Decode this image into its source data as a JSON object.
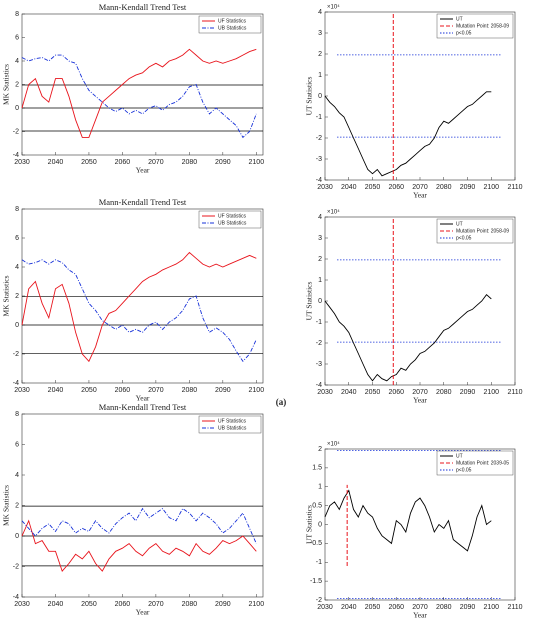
{
  "caption": "(a)",
  "chart_data": [
    {
      "type": "line",
      "title": "Mann-Kendall Trend Test",
      "xlabel": "Year",
      "ylabel": "MK Statistics",
      "x": [
        2030,
        2032,
        2034,
        2036,
        2038,
        2040,
        2042,
        2044,
        2046,
        2048,
        2050,
        2052,
        2054,
        2056,
        2058,
        2060,
        2062,
        2064,
        2066,
        2068,
        2070,
        2072,
        2074,
        2076,
        2078,
        2080,
        2082,
        2084,
        2086,
        2088,
        2090,
        2092,
        2094,
        2096,
        2098,
        2100
      ],
      "series": [
        {
          "name": "UF Statistics",
          "color": "#e8141c",
          "dash": "solid",
          "values": [
            0,
            2,
            2.5,
            1,
            0.5,
            2.5,
            2.5,
            1,
            -1,
            -2.5,
            -2.5,
            -1,
            0.5,
            1,
            1.5,
            2,
            2.5,
            2.8,
            3,
            3.5,
            3.8,
            3.5,
            4,
            4.2,
            4.5,
            5,
            4.5,
            4,
            3.8,
            4,
            3.8,
            4,
            4.2,
            4.5,
            4.8,
            5
          ]
        },
        {
          "name": "UB Statistics",
          "color": "#1630d8",
          "dash": "dashdot",
          "values": [
            4.3,
            4,
            4.2,
            4.3,
            4,
            4.5,
            4.5,
            4,
            3.8,
            2.5,
            1.5,
            1,
            0.5,
            0,
            -0.3,
            0,
            -0.5,
            -0.2,
            -0.5,
            0,
            0.2,
            -0.2,
            0.3,
            0.5,
            1,
            1.8,
            2,
            0.5,
            -0.5,
            0,
            -0.5,
            -1,
            -1.5,
            -2.5,
            -2,
            -0.5
          ]
        }
      ],
      "hlines": [
        1.96,
        0,
        -1.96
      ],
      "xlim": [
        2030,
        2102
      ],
      "xticks": [
        2030,
        2040,
        2050,
        2060,
        2070,
        2080,
        2090,
        2100
      ],
      "ylim": [
        -4,
        8
      ],
      "yticks": [
        -4,
        -2,
        0,
        2,
        4,
        6,
        8
      ]
    },
    {
      "type": "line",
      "xlabel": "Year",
      "ylabel": "UT Statistics",
      "y_exponent": "×10⁴",
      "x": [
        2030,
        2032,
        2034,
        2036,
        2038,
        2040,
        2042,
        2044,
        2046,
        2048,
        2050,
        2052,
        2054,
        2056,
        2058,
        2060,
        2062,
        2064,
        2066,
        2068,
        2070,
        2072,
        2074,
        2076,
        2078,
        2080,
        2082,
        2084,
        2086,
        2088,
        2090,
        2092,
        2094,
        2096,
        2098,
        2100
      ],
      "series": [
        {
          "name": "UT",
          "color": "#000000",
          "dash": "solid",
          "values": [
            0,
            -0.3,
            -0.5,
            -0.8,
            -1,
            -1.5,
            -2,
            -2.5,
            -3,
            -3.5,
            -3.7,
            -3.5,
            -3.8,
            -3.7,
            -3.6,
            -3.5,
            -3.3,
            -3.2,
            -3,
            -2.8,
            -2.6,
            -2.4,
            -2.3,
            -2,
            -1.5,
            -1.2,
            -1.3,
            -1.1,
            -0.9,
            -0.7,
            -0.5,
            -0.4,
            -0.2,
            0,
            0.2,
            0.2
          ]
        }
      ],
      "mutation": {
        "name": "Mutation Point: 2058-09",
        "color": "#e8141c",
        "x": 2058.75,
        "y": [
          -4,
          4
        ]
      },
      "threshold": {
        "name": "p<0.05",
        "color": "#1630d8",
        "values": [
          1.96,
          -1.96
        ]
      },
      "xlim": [
        2030,
        2110
      ],
      "xticks": [
        2030,
        2040,
        2050,
        2060,
        2070,
        2080,
        2090,
        2100,
        2110
      ],
      "ylim": [
        -4,
        4
      ],
      "yticks": [
        -4,
        -3,
        -2,
        -1,
        0,
        1,
        2,
        3,
        4
      ]
    },
    {
      "type": "line",
      "title": "Mann-Kendall Trend Test",
      "xlabel": "Year",
      "ylabel": "MK Statistics",
      "x": [
        2030,
        2032,
        2034,
        2036,
        2038,
        2040,
        2042,
        2044,
        2046,
        2048,
        2050,
        2052,
        2054,
        2056,
        2058,
        2060,
        2062,
        2064,
        2066,
        2068,
        2070,
        2072,
        2074,
        2076,
        2078,
        2080,
        2082,
        2084,
        2086,
        2088,
        2090,
        2092,
        2094,
        2096,
        2098,
        2100
      ],
      "series": [
        {
          "name": "UF Statistics",
          "color": "#e8141c",
          "dash": "solid",
          "values": [
            0,
            2.5,
            3,
            1.5,
            0.5,
            2.5,
            2.8,
            1.5,
            -0.5,
            -2,
            -2.5,
            -1.5,
            0,
            0.8,
            1,
            1.5,
            2,
            2.5,
            3,
            3.3,
            3.5,
            3.8,
            4,
            4.2,
            4.5,
            5,
            4.6,
            4.2,
            4,
            4.2,
            4,
            4.2,
            4.4,
            4.6,
            4.8,
            4.6
          ]
        },
        {
          "name": "UB Statistics",
          "color": "#1630d8",
          "dash": "dashdot",
          "values": [
            4.5,
            4.2,
            4.3,
            4.5,
            4.2,
            4.5,
            4.3,
            3.8,
            3.5,
            2.5,
            1.5,
            1,
            0.3,
            0,
            -0.3,
            0,
            -0.5,
            -0.3,
            -0.5,
            0,
            0.2,
            -0.3,
            0.2,
            0.5,
            1,
            1.8,
            2,
            0.5,
            -0.5,
            -0.2,
            -0.5,
            -1,
            -1.8,
            -2.5,
            -2,
            -1
          ]
        }
      ],
      "hlines": [
        1.96,
        0,
        -1.96
      ],
      "xlim": [
        2030,
        2102
      ],
      "xticks": [
        2030,
        2040,
        2050,
        2060,
        2070,
        2080,
        2090,
        2100
      ],
      "ylim": [
        -4,
        8
      ],
      "yticks": [
        -4,
        -2,
        0,
        2,
        4,
        6,
        8
      ]
    },
    {
      "type": "line",
      "xlabel": "Year",
      "ylabel": "UT Statistics",
      "y_exponent": "×10⁴",
      "x": [
        2030,
        2032,
        2034,
        2036,
        2038,
        2040,
        2042,
        2044,
        2046,
        2048,
        2050,
        2052,
        2054,
        2056,
        2058,
        2060,
        2062,
        2064,
        2066,
        2068,
        2070,
        2072,
        2074,
        2076,
        2078,
        2080,
        2082,
        2084,
        2086,
        2088,
        2090,
        2092,
        2094,
        2096,
        2098,
        2100
      ],
      "series": [
        {
          "name": "UT",
          "color": "#000000",
          "dash": "solid",
          "values": [
            0,
            -0.3,
            -0.6,
            -1,
            -1.2,
            -1.5,
            -2,
            -2.5,
            -3,
            -3.5,
            -3.8,
            -3.5,
            -3.7,
            -3.8,
            -3.6,
            -3.5,
            -3.2,
            -3.3,
            -3,
            -2.8,
            -2.5,
            -2.4,
            -2.2,
            -2,
            -1.7,
            -1.4,
            -1.3,
            -1.1,
            -0.9,
            -0.7,
            -0.5,
            -0.4,
            -0.2,
            0,
            0.3,
            0.1
          ]
        }
      ],
      "mutation": {
        "name": "Mutation Point: 2058-09",
        "color": "#e8141c",
        "x": 2058.75,
        "y": [
          -4,
          4
        ]
      },
      "threshold": {
        "name": "p<0.05",
        "color": "#1630d8",
        "values": [
          1.96,
          -1.96
        ]
      },
      "xlim": [
        2030,
        2110
      ],
      "xticks": [
        2030,
        2040,
        2050,
        2060,
        2070,
        2080,
        2090,
        2100,
        2110
      ],
      "ylim": [
        -4,
        4
      ],
      "yticks": [
        -4,
        -3,
        -2,
        -1,
        0,
        1,
        2,
        3,
        4
      ]
    },
    {
      "type": "line",
      "title": "Mann-Kendall Trend Test",
      "xlabel": "Year",
      "ylabel": "MK Statistics",
      "x": [
        2030,
        2032,
        2034,
        2036,
        2038,
        2040,
        2042,
        2044,
        2046,
        2048,
        2050,
        2052,
        2054,
        2056,
        2058,
        2060,
        2062,
        2064,
        2066,
        2068,
        2070,
        2072,
        2074,
        2076,
        2078,
        2080,
        2082,
        2084,
        2086,
        2088,
        2090,
        2092,
        2094,
        2096,
        2098,
        2100
      ],
      "series": [
        {
          "name": "UF Statistics",
          "color": "#e8141c",
          "dash": "solid",
          "values": [
            0,
            1,
            -0.5,
            -0.3,
            -1,
            -1,
            -2.3,
            -1.8,
            -1.2,
            -1.5,
            -1,
            -1.8,
            -2.3,
            -1.5,
            -1,
            -0.8,
            -0.5,
            -1,
            -1.3,
            -0.8,
            -0.5,
            -1,
            -1.2,
            -0.8,
            -1,
            -1.3,
            -0.5,
            -1,
            -1.2,
            -0.8,
            -0.3,
            -0.5,
            -0.3,
            0,
            -0.5,
            -1
          ]
        },
        {
          "name": "UB Statistics",
          "color": "#1630d8",
          "dash": "dashdot",
          "values": [
            1,
            0.5,
            0,
            0.5,
            0.8,
            0.3,
            1,
            0.8,
            0.2,
            0.5,
            0.3,
            1,
            0.5,
            0.2,
            0.8,
            1.2,
            1.5,
            1,
            1.8,
            1.2,
            1.5,
            1.8,
            1.2,
            1,
            1.8,
            1.5,
            1,
            1.5,
            1.2,
            0.8,
            0.2,
            0.5,
            1,
            1.5,
            0.5,
            -0.5
          ]
        }
      ],
      "hlines": [
        1.96,
        0,
        -1.96
      ],
      "xlim": [
        2030,
        2102
      ],
      "xticks": [
        2030,
        2040,
        2050,
        2060,
        2070,
        2080,
        2090,
        2100
      ],
      "ylim": [
        -4,
        8
      ],
      "yticks": [
        -4,
        -2,
        0,
        2,
        4,
        6,
        8
      ]
    },
    {
      "type": "line",
      "xlabel": "Year",
      "ylabel": "UT Statistics",
      "y_exponent": "×10⁴",
      "x": [
        2030,
        2032,
        2034,
        2036,
        2038,
        2040,
        2042,
        2044,
        2046,
        2048,
        2050,
        2052,
        2054,
        2056,
        2058,
        2060,
        2062,
        2064,
        2066,
        2068,
        2070,
        2072,
        2074,
        2076,
        2078,
        2080,
        2082,
        2084,
        2086,
        2088,
        2090,
        2092,
        2094,
        2096,
        2098,
        2100
      ],
      "series": [
        {
          "name": "UT",
          "color": "#000000",
          "dash": "solid",
          "values": [
            0.2,
            0.5,
            0.6,
            0.4,
            0.7,
            0.9,
            0.4,
            0.2,
            0.5,
            0.3,
            0.2,
            -0.1,
            -0.3,
            -0.4,
            -0.5,
            0.1,
            0,
            -0.2,
            0.3,
            0.6,
            0.7,
            0.5,
            0.2,
            -0.2,
            0,
            -0.1,
            0.1,
            -0.4,
            -0.5,
            -0.6,
            -0.7,
            -0.3,
            0.2,
            0.5,
            0,
            0.1
          ]
        }
      ],
      "mutation": {
        "name": "Mutation Point: 2039-05",
        "color": "#e8141c",
        "x": 2039.33,
        "y": [
          -1.1,
          1.05
        ]
      },
      "threshold": {
        "name": "p<0.05",
        "color": "#1630d8",
        "values": [
          1.96,
          -1.96
        ]
      },
      "xlim": [
        2030,
        2110
      ],
      "xticks": [
        2030,
        2040,
        2050,
        2060,
        2070,
        2080,
        2090,
        2100,
        2110
      ],
      "ylim": [
        -2,
        2
      ],
      "yticks": [
        -2,
        -1.5,
        -1,
        -0.5,
        0,
        0.5,
        1,
        1.5,
        2
      ]
    }
  ]
}
